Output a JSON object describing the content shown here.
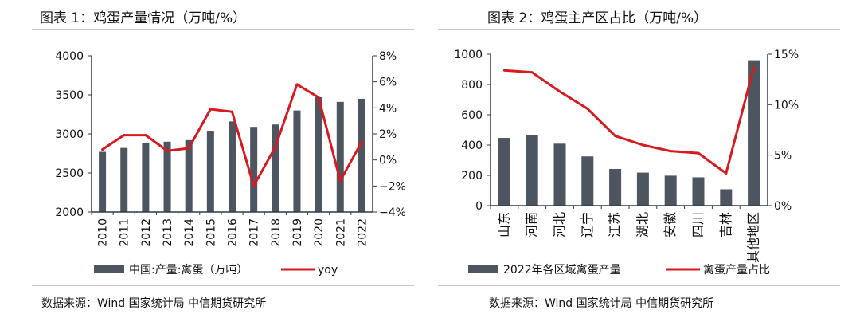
{
  "charts_meta": {
    "chart1": {
      "title": "图表 1：鸡蛋产量情况（万吨/%）",
      "source": "数据来源：Wind 国家统计局 中信期货研究所"
    },
    "chart2": {
      "title": "图表 2：鸡蛋主产区占比（万吨/%）",
      "source": "数据来源：Wind 国家统计局 中信期货研究所"
    }
  },
  "colors": {
    "bar": "#4d5560",
    "line": "#d71920",
    "rule": "#bfbfbf",
    "axis": "#2f3b4c"
  },
  "chart_data": [
    {
      "type": "bar",
      "title": "图表 1：鸡蛋产量情况（万吨/%）",
      "categories": [
        "2010",
        "2011",
        "2012",
        "2013",
        "2014",
        "2015",
        "2016",
        "2017",
        "2018",
        "2019",
        "2020",
        "2021",
        "2022"
      ],
      "series": [
        {
          "name": "中国:产量:禽蛋（万吨）",
          "type": "bar",
          "axis": "left",
          "values": [
            2770,
            2820,
            2880,
            2900,
            2920,
            3040,
            3160,
            3090,
            3120,
            3300,
            3470,
            3410,
            3450
          ]
        },
        {
          "name": "yoy",
          "type": "line",
          "axis": "right",
          "values": [
            0.8,
            1.9,
            1.9,
            0.7,
            0.9,
            3.9,
            3.7,
            -2.0,
            1.0,
            5.8,
            4.8,
            -1.6,
            1.4
          ]
        }
      ],
      "ylim_left": [
        2000,
        4000
      ],
      "yticks_left": [
        "2000",
        "2500",
        "3000",
        "3500",
        "4000"
      ],
      "ylim_right": [
        -4,
        8
      ],
      "yticks_right": [
        "−4%",
        "−2%",
        "0%",
        "2%",
        "4%",
        "6%",
        "8%"
      ],
      "legend": "bottom"
    },
    {
      "type": "bar",
      "title": "图表 2：鸡蛋主产区占比（万吨/%）",
      "categories": [
        "山东",
        "河南",
        "河北",
        "辽宁",
        "江苏",
        "湖北",
        "安徽",
        "四川",
        "吉林",
        "其他地区"
      ],
      "series": [
        {
          "name": "2022年各区域禽蛋产量",
          "type": "bar",
          "axis": "left",
          "values": [
            447,
            466,
            409,
            325,
            242,
            218,
            198,
            187,
            108,
            960
          ]
        },
        {
          "name": "禽蛋产量占比",
          "type": "line",
          "axis": "right",
          "values": [
            13.4,
            13.2,
            11.3,
            9.6,
            6.9,
            6.0,
            5.4,
            5.2,
            3.2,
            13.7
          ]
        }
      ],
      "ylim_left": [
        0,
        1000
      ],
      "yticks_left": [
        "0",
        "200",
        "400",
        "600",
        "800",
        "1000"
      ],
      "ylim_right": [
        0,
        15
      ],
      "yticks_right": [
        "0%",
        "5%",
        "10%",
        "15%"
      ],
      "legend": "bottom"
    }
  ]
}
